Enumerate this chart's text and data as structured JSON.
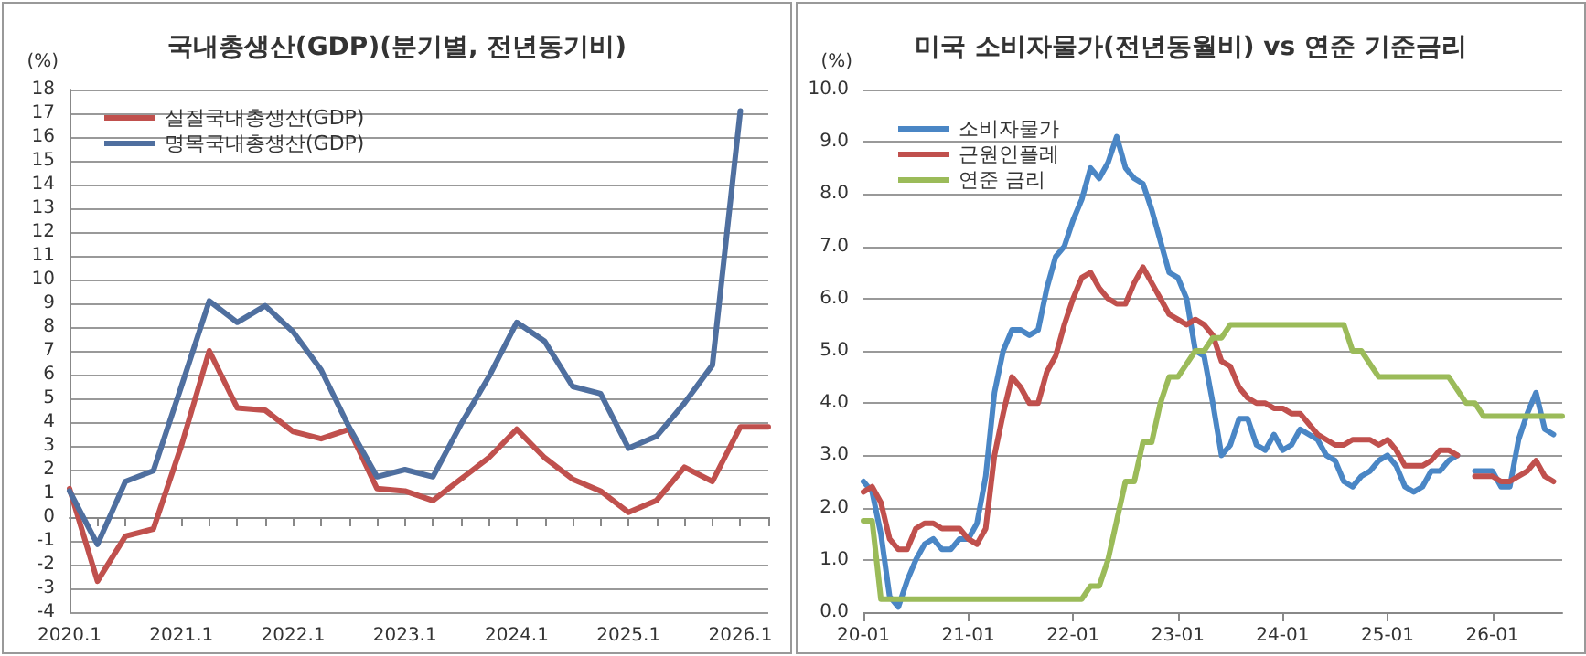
{
  "chart_data": [
    {
      "type": "line",
      "title": "국내총생산(GDP)(분기별, 전년동기비)",
      "ylabel": "(%)",
      "categories": [
        "2020.1",
        null,
        null,
        null,
        "2021.1",
        null,
        null,
        null,
        "2022.1",
        null,
        null,
        null,
        "2023.1",
        null,
        null,
        null,
        "2024.1",
        null,
        null,
        null,
        "2025.1",
        null,
        null,
        null,
        "2026.1",
        null
      ],
      "series": [
        {
          "name": "실질국내총생산(GDP)",
          "color": "#c0504d",
          "values": [
            1.2,
            -2.7,
            -0.8,
            -0.5,
            3.0,
            7.0,
            4.6,
            4.5,
            3.6,
            3.3,
            3.7,
            1.2,
            1.1,
            0.7,
            1.6,
            2.5,
            3.7,
            2.5,
            1.6,
            1.1,
            0.2,
            0.7,
            2.1,
            1.5,
            3.8,
            3.8
          ]
        },
        {
          "name": "명목국내총생산(GDP)",
          "color": "#4f6f9f",
          "values": [
            1.1,
            -1.15,
            1.5,
            1.95,
            5.5,
            9.1,
            8.2,
            8.9,
            7.8,
            6.2,
            3.8,
            1.7,
            2.0,
            1.7,
            3.9,
            5.9,
            8.2,
            7.4,
            5.5,
            5.2,
            2.9,
            3.4,
            4.8,
            6.4,
            17.1,
            null
          ]
        }
      ],
      "ylim": [
        -4,
        18
      ],
      "yticks": [
        -4,
        -3,
        -2,
        -1,
        0,
        1,
        2,
        3,
        4,
        5,
        6,
        7,
        8,
        9,
        10,
        11,
        12,
        13,
        14,
        15,
        16,
        17,
        18
      ],
      "grid": "y",
      "legend": "top left",
      "marker": "none"
    },
    {
      "type": "line",
      "title": "미국 소비자물가(전년동월비) vs 연준 기준금리",
      "ylabel": "(%)",
      "categories": [
        "20-01",
        null,
        null,
        null,
        null,
        null,
        null,
        null,
        null,
        null,
        null,
        null,
        "21-01",
        null,
        null,
        null,
        null,
        null,
        null,
        null,
        null,
        null,
        null,
        null,
        "22-01",
        null,
        null,
        null,
        null,
        null,
        null,
        null,
        null,
        null,
        null,
        null,
        "23-01",
        null,
        null,
        null,
        null,
        null,
        null,
        null,
        null,
        null,
        null,
        null,
        "24-01",
        null,
        null,
        null,
        null,
        null,
        null,
        null,
        null,
        null,
        null,
        null,
        "25-01",
        null,
        null,
        null,
        null,
        null,
        null,
        null,
        null,
        null,
        null,
        null,
        "26-01",
        null,
        null,
        null,
        null,
        null,
        null,
        null,
        null
      ],
      "series": [
        {
          "name": "소비자물가",
          "color": "#4a86c5",
          "values": [
            2.5,
            2.3,
            1.5,
            0.3,
            0.1,
            0.6,
            1.0,
            1.3,
            1.4,
            1.2,
            1.2,
            1.4,
            1.4,
            1.7,
            2.6,
            4.2,
            5.0,
            5.4,
            5.4,
            5.3,
            5.4,
            6.2,
            6.8,
            7.0,
            7.5,
            7.9,
            8.5,
            8.3,
            8.6,
            9.1,
            8.5,
            8.3,
            8.2,
            7.7,
            7.1,
            6.5,
            6.4,
            6.0,
            5.0,
            4.9,
            4.0,
            3.0,
            3.2,
            3.7,
            3.7,
            3.2,
            3.1,
            3.4,
            3.1,
            3.2,
            3.5,
            3.4,
            3.3,
            3.0,
            2.9,
            2.5,
            2.4,
            2.6,
            2.7,
            2.9,
            3.0,
            2.8,
            2.4,
            2.3,
            2.4,
            2.7,
            2.7,
            2.9,
            3.0,
            null,
            2.7,
            2.7,
            2.7,
            2.4,
            2.4,
            3.3,
            3.8,
            4.2,
            3.5,
            3.4,
            null
          ]
        },
        {
          "name": "근원인플레",
          "color": "#c0504d",
          "values": [
            2.3,
            2.4,
            2.1,
            1.4,
            1.2,
            1.2,
            1.6,
            1.7,
            1.7,
            1.6,
            1.6,
            1.6,
            1.4,
            1.3,
            1.6,
            3.0,
            3.8,
            4.5,
            4.3,
            4.0,
            4.0,
            4.6,
            4.9,
            5.5,
            6.0,
            6.4,
            6.5,
            6.2,
            6.0,
            5.9,
            5.9,
            6.3,
            6.6,
            6.3,
            6.0,
            5.7,
            5.6,
            5.5,
            5.6,
            5.5,
            5.3,
            4.8,
            4.7,
            4.3,
            4.1,
            4.0,
            4.0,
            3.9,
            3.9,
            3.8,
            3.8,
            3.6,
            3.4,
            3.3,
            3.2,
            3.2,
            3.3,
            3.3,
            3.3,
            3.2,
            3.3,
            3.1,
            2.8,
            2.8,
            2.8,
            2.9,
            3.1,
            3.1,
            3.0,
            null,
            2.6,
            2.6,
            2.6,
            2.5,
            2.5,
            2.6,
            2.7,
            2.9,
            2.6,
            2.5,
            null
          ]
        },
        {
          "name": "연준 금리",
          "color": "#9bbb59",
          "values": [
            1.75,
            1.75,
            0.25,
            0.25,
            0.25,
            0.25,
            0.25,
            0.25,
            0.25,
            0.25,
            0.25,
            0.25,
            0.25,
            0.25,
            0.25,
            0.25,
            0.25,
            0.25,
            0.25,
            0.25,
            0.25,
            0.25,
            0.25,
            0.25,
            0.25,
            0.25,
            0.5,
            0.5,
            1.0,
            1.75,
            2.5,
            2.5,
            3.25,
            3.25,
            4.0,
            4.5,
            4.5,
            4.75,
            5.0,
            5.0,
            5.25,
            5.25,
            5.5,
            5.5,
            5.5,
            5.5,
            5.5,
            5.5,
            5.5,
            5.5,
            5.5,
            5.5,
            5.5,
            5.5,
            5.5,
            5.5,
            5.0,
            5.0,
            4.75,
            4.5,
            4.5,
            4.5,
            4.5,
            4.5,
            4.5,
            4.5,
            4.5,
            4.5,
            4.25,
            4.0,
            4.0,
            3.75,
            3.75,
            3.75,
            3.75,
            3.75,
            3.75,
            3.75,
            3.75,
            3.75,
            3.75
          ]
        }
      ],
      "ylim": [
        0,
        10
      ],
      "yticks": [
        {
          "value": 0,
          "label": "0.0"
        },
        {
          "value": 1,
          "label": "1.0"
        },
        {
          "value": 2,
          "label": "2.0"
        },
        {
          "value": 3,
          "label": "3.0"
        },
        {
          "value": 4,
          "label": "4.0"
        },
        {
          "value": 5,
          "label": "5.0"
        },
        {
          "value": 6,
          "label": "6.0"
        },
        {
          "value": 7,
          "label": "7.0"
        },
        {
          "value": 8,
          "label": "8.0"
        },
        {
          "value": 9,
          "label": "9.0"
        },
        {
          "value": 10,
          "label": "10.0"
        }
      ],
      "grid": "y",
      "legend": "top left",
      "marker": "none"
    }
  ]
}
